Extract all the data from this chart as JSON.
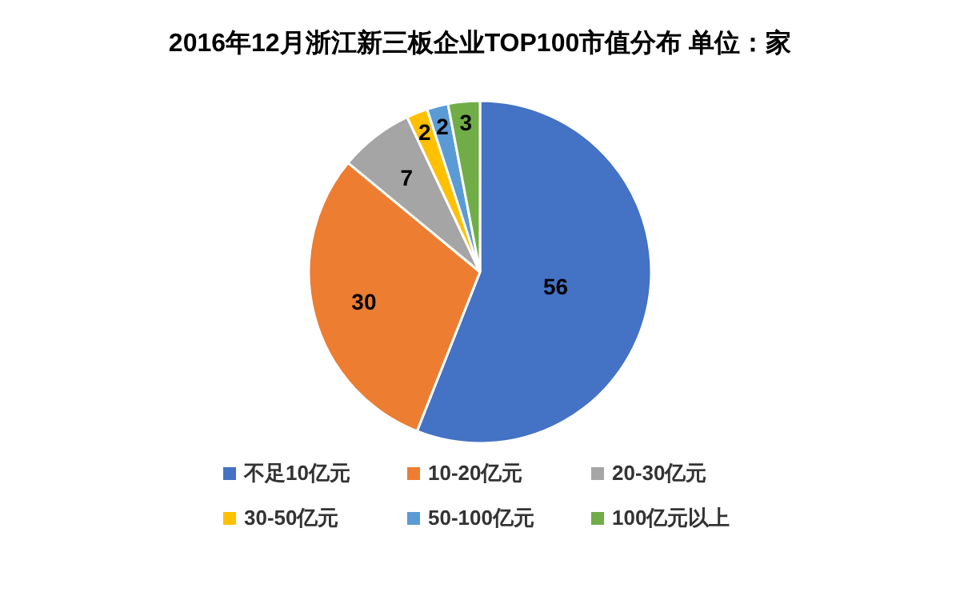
{
  "chart_data": {
    "type": "pie",
    "title": "2016年12月浙江新三板企业TOP100市值分布  单位：家",
    "categories": [
      "不足10亿元",
      "10-20亿元",
      "20-30亿元",
      "30-50亿元",
      "50-100亿元",
      "100亿元以上"
    ],
    "values": [
      56,
      30,
      7,
      2,
      2,
      3
    ],
    "colors": [
      "#4472c4",
      "#ed7d31",
      "#a5a5a5",
      "#ffc000",
      "#5b9bd5",
      "#70ad47"
    ],
    "data_labels": true,
    "legend": "bottom"
  }
}
